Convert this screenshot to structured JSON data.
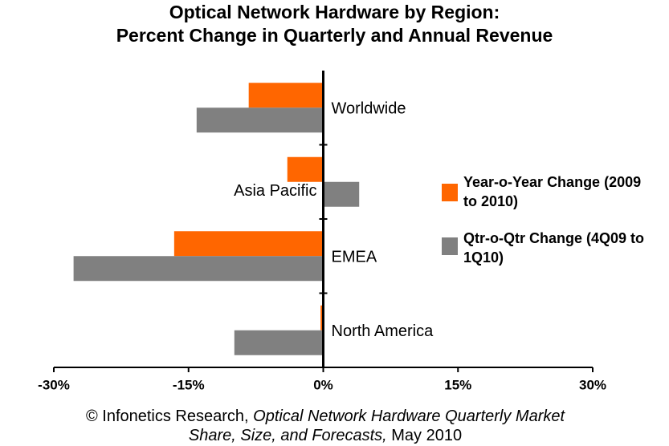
{
  "chart_data": {
    "type": "hbar",
    "title": [
      "Optical Network Hardware by Region:",
      "Percent Change in Quarterly and Annual Revenue"
    ],
    "categories": [
      "Worldwide",
      "Asia Pacific",
      "EMEA",
      "North America"
    ],
    "series": [
      {
        "name": "Year-o-Year Change (2009 to 2010)",
        "color": "#ff6600",
        "values": [
          -8.3,
          -4.0,
          -16.6,
          -0.3
        ]
      },
      {
        "name": "Qtr-o-Qtr Change (4Q09 to 1Q10)",
        "color": "#808080",
        "values": [
          -14.1,
          4.0,
          -27.8,
          -9.9
        ]
      }
    ],
    "xlim": [
      -30,
      30
    ],
    "xticks": [
      {
        "value": -30,
        "label": "-30%"
      },
      {
        "value": -15,
        "label": "-15%"
      },
      {
        "value": 0,
        "label": "0%"
      },
      {
        "value": 15,
        "label": "15%"
      },
      {
        "value": 30,
        "label": "30%"
      }
    ],
    "source": {
      "prefix": "© Infonetics Research,",
      "title": "Optical Network Hardware Quarterly Market Share, Size, and Forecasts,",
      "suffix": "May 2010"
    }
  }
}
